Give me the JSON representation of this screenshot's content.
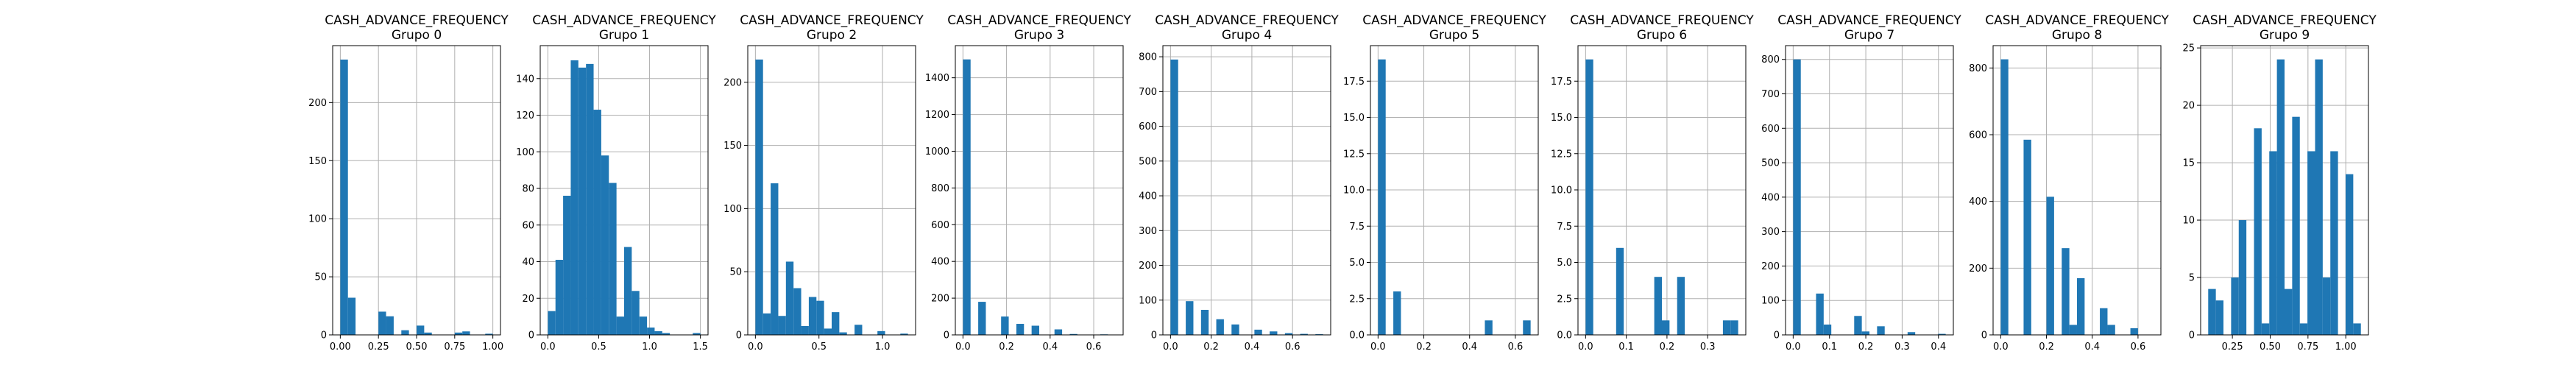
{
  "colors": {
    "bar": "#1f77b4",
    "grid": "#b0b0b0",
    "axis": "#000000"
  },
  "chart_data": [
    {
      "type": "bar",
      "title": [
        "CASH_ADVANCE_FREQUENCY",
        "Grupo 0"
      ],
      "xlabel": "",
      "ylabel": "",
      "grid": true,
      "xlim": [
        -0.05,
        1.05
      ],
      "ylim": [
        0,
        249
      ],
      "xticks": [
        0.0,
        0.25,
        0.5,
        0.75,
        1.0
      ],
      "xtick_labels": [
        "0.00",
        "0.25",
        "0.50",
        "0.75",
        "1.00"
      ],
      "yticks": [
        0,
        50,
        100,
        150,
        200
      ],
      "ytick_labels": [
        "0",
        "50",
        "100",
        "150",
        "200"
      ],
      "bin_edges": [
        0,
        0.05,
        0.1,
        0.15,
        0.2,
        0.25,
        0.3,
        0.35,
        0.4,
        0.45,
        0.5,
        0.55,
        0.6,
        0.65,
        0.7,
        0.75,
        0.8,
        0.85,
        0.9,
        0.95,
        1.0
      ],
      "counts": [
        237,
        32,
        0,
        0,
        0,
        20,
        16,
        0,
        4,
        0,
        8,
        2,
        0,
        0,
        0,
        2,
        3,
        0,
        0,
        1
      ]
    },
    {
      "type": "bar",
      "title": [
        "CASH_ADVANCE_FREQUENCY",
        "Grupo 1"
      ],
      "xlabel": "",
      "ylabel": "",
      "grid": true,
      "xlim": [
        -0.075,
        1.575
      ],
      "ylim": [
        0,
        158
      ],
      "xticks": [
        0.0,
        0.5,
        1.0,
        1.5
      ],
      "xtick_labels": [
        "0.0",
        "0.5",
        "1.0",
        "1.5"
      ],
      "yticks": [
        0,
        20,
        40,
        60,
        80,
        100,
        120,
        140
      ],
      "ytick_labels": [
        "0",
        "20",
        "40",
        "60",
        "80",
        "100",
        "120",
        "140"
      ],
      "bin_edges": [
        0,
        0.075,
        0.15,
        0.225,
        0.3,
        0.375,
        0.45,
        0.525,
        0.6,
        0.675,
        0.75,
        0.825,
        0.9,
        0.975,
        1.05,
        1.125,
        1.2,
        1.275,
        1.35,
        1.425,
        1.5
      ],
      "counts": [
        13,
        41,
        76,
        150,
        146,
        148,
        123,
        98,
        83,
        10,
        48,
        24,
        10,
        4,
        2,
        1,
        0,
        0,
        0,
        1
      ]
    },
    {
      "type": "bar",
      "title": [
        "CASH_ADVANCE_FREQUENCY",
        "Grupo 2"
      ],
      "xlabel": "",
      "ylabel": "",
      "grid": true,
      "xlim": [
        -0.06,
        1.26
      ],
      "ylim": [
        0,
        229
      ],
      "xticks": [
        0.0,
        0.5,
        1.0
      ],
      "xtick_labels": [
        "0.0",
        "0.5",
        "1.0"
      ],
      "yticks": [
        0,
        50,
        100,
        150,
        200
      ],
      "ytick_labels": [
        "0",
        "50",
        "100",
        "150",
        "200"
      ],
      "bin_edges": [
        0,
        0.06,
        0.12,
        0.18,
        0.24,
        0.3,
        0.36,
        0.42,
        0.48,
        0.54,
        0.6,
        0.66,
        0.72,
        0.78,
        0.84,
        0.9,
        0.96,
        1.02,
        1.08,
        1.14,
        1.2
      ],
      "counts": [
        218,
        17,
        120,
        15,
        58,
        37,
        7,
        30,
        27,
        5,
        18,
        2,
        0,
        8,
        0,
        0,
        3,
        0,
        0,
        1
      ]
    },
    {
      "type": "bar",
      "title": [
        "CASH_ADVANCE_FREQUENCY",
        "Grupo 3"
      ],
      "xlabel": "",
      "ylabel": "",
      "grid": true,
      "xlim": [
        -0.035,
        0.735
      ],
      "ylim": [
        0,
        1575
      ],
      "xticks": [
        0.0,
        0.2,
        0.4,
        0.6
      ],
      "xtick_labels": [
        "0.0",
        "0.2",
        "0.4",
        "0.6"
      ],
      "yticks": [
        0,
        200,
        400,
        600,
        800,
        1000,
        1200,
        1400
      ],
      "ytick_labels": [
        "0",
        "200",
        "400",
        "600",
        "800",
        "1000",
        "1200",
        "1400"
      ],
      "bin_edges": [
        0,
        0.035,
        0.07,
        0.105,
        0.14,
        0.175,
        0.21,
        0.245,
        0.28,
        0.315,
        0.35,
        0.385,
        0.42,
        0.455,
        0.49,
        0.525,
        0.56,
        0.595,
        0.63,
        0.665,
        0.7
      ],
      "counts": [
        1500,
        0,
        180,
        0,
        0,
        100,
        0,
        60,
        0,
        50,
        0,
        0,
        30,
        0,
        5,
        0,
        0,
        0,
        3,
        2
      ]
    },
    {
      "type": "bar",
      "title": [
        "CASH_ADVANCE_FREQUENCY",
        "Grupo 4"
      ],
      "xlabel": "",
      "ylabel": "",
      "grid": true,
      "xlim": [
        -0.0375,
        0.7875
      ],
      "ylim": [
        0,
        832
      ],
      "xticks": [
        0.0,
        0.2,
        0.4,
        0.6
      ],
      "xtick_labels": [
        "0.0",
        "0.2",
        "0.4",
        "0.6"
      ],
      "yticks": [
        0,
        100,
        200,
        300,
        400,
        500,
        600,
        700,
        800
      ],
      "ytick_labels": [
        "0",
        "100",
        "200",
        "300",
        "400",
        "500",
        "600",
        "700",
        "800"
      ],
      "bin_edges": [
        0,
        0.0375,
        0.075,
        0.1125,
        0.15,
        0.1875,
        0.225,
        0.2625,
        0.3,
        0.3375,
        0.375,
        0.4125,
        0.45,
        0.4875,
        0.525,
        0.5625,
        0.6,
        0.6375,
        0.675,
        0.7125,
        0.75
      ],
      "counts": [
        792,
        0,
        97,
        0,
        72,
        0,
        45,
        0,
        30,
        0,
        0,
        15,
        0,
        10,
        0,
        5,
        0,
        3,
        0,
        2
      ]
    },
    {
      "type": "bar",
      "title": [
        "CASH_ADVANCE_FREQUENCY",
        "Grupo 5"
      ],
      "xlabel": "",
      "ylabel": "",
      "grid": true,
      "xlim": [
        -0.0333,
        0.7
      ],
      "ylim": [
        0,
        19.95
      ],
      "xticks": [
        0.0,
        0.2,
        0.4,
        0.6
      ],
      "xtick_labels": [
        "0.0",
        "0.2",
        "0.4",
        "0.6"
      ],
      "yticks": [
        0,
        2.5,
        5,
        7.5,
        10,
        12.5,
        15,
        17.5
      ],
      "ytick_labels": [
        "0.0",
        "2.5",
        "5.0",
        "7.5",
        "10.0",
        "12.5",
        "15.0",
        "17.5"
      ],
      "bin_edges": [
        0,
        0.0333,
        0.0667,
        0.1,
        0.1333,
        0.1667,
        0.2,
        0.2333,
        0.2667,
        0.3,
        0.3333,
        0.3667,
        0.4,
        0.4333,
        0.4667,
        0.5,
        0.5333,
        0.5667,
        0.6,
        0.6333,
        0.6667
      ],
      "counts": [
        19,
        0,
        3,
        0,
        0,
        0,
        0,
        0,
        0,
        0,
        0,
        0,
        0,
        0,
        1,
        0,
        0,
        0,
        0,
        1
      ]
    },
    {
      "type": "bar",
      "title": [
        "CASH_ADVANCE_FREQUENCY",
        "Grupo 6"
      ],
      "xlabel": "",
      "ylabel": "",
      "grid": true,
      "xlim": [
        -0.01875,
        0.39375
      ],
      "ylim": [
        0,
        19.95
      ],
      "xticks": [
        0.0,
        0.1,
        0.2,
        0.3
      ],
      "xtick_labels": [
        "0.0",
        "0.1",
        "0.2",
        "0.3"
      ],
      "yticks": [
        0,
        2.5,
        5,
        7.5,
        10,
        12.5,
        15,
        17.5
      ],
      "ytick_labels": [
        "0.0",
        "2.5",
        "5.0",
        "7.5",
        "10.0",
        "12.5",
        "15.0",
        "17.5"
      ],
      "bin_edges": [
        0,
        0.01875,
        0.0375,
        0.05625,
        0.075,
        0.09375,
        0.1125,
        0.13125,
        0.15,
        0.16875,
        0.1875,
        0.20625,
        0.225,
        0.24375,
        0.2625,
        0.28125,
        0.3,
        0.31875,
        0.3375,
        0.35625,
        0.375
      ],
      "counts": [
        19,
        0,
        0,
        0,
        6,
        0,
        0,
        0,
        0,
        4,
        1,
        0,
        4,
        0,
        0,
        0,
        0,
        0,
        1,
        1
      ]
    },
    {
      "type": "bar",
      "title": [
        "CASH_ADVANCE_FREQUENCY",
        "Grupo 7"
      ],
      "xlabel": "",
      "ylabel": "",
      "grid": true,
      "xlim": [
        -0.021,
        0.441
      ],
      "ylim": [
        0,
        840
      ],
      "xticks": [
        0.0,
        0.1,
        0.2,
        0.3,
        0.4
      ],
      "xtick_labels": [
        "0.0",
        "0.1",
        "0.2",
        "0.3",
        "0.4"
      ],
      "yticks": [
        0,
        100,
        200,
        300,
        400,
        500,
        600,
        700,
        800
      ],
      "ytick_labels": [
        "0",
        "100",
        "200",
        "300",
        "400",
        "500",
        "600",
        "700",
        "800"
      ],
      "bin_edges": [
        0,
        0.021,
        0.042,
        0.063,
        0.084,
        0.105,
        0.126,
        0.147,
        0.168,
        0.189,
        0.21,
        0.231,
        0.252,
        0.273,
        0.294,
        0.315,
        0.336,
        0.357,
        0.378,
        0.399,
        0.42
      ],
      "counts": [
        800,
        0,
        0,
        120,
        30,
        0,
        0,
        0,
        55,
        10,
        0,
        25,
        0,
        0,
        0,
        8,
        0,
        0,
        0,
        3
      ]
    },
    {
      "type": "bar",
      "title": [
        "CASH_ADVANCE_FREQUENCY",
        "Grupo 8"
      ],
      "xlabel": "",
      "ylabel": "",
      "grid": true,
      "xlim": [
        -0.0333,
        0.7
      ],
      "ylim": [
        0,
        867
      ],
      "xticks": [
        0.0,
        0.2,
        0.4,
        0.6
      ],
      "xtick_labels": [
        "0.0",
        "0.2",
        "0.4",
        "0.6"
      ],
      "yticks": [
        0,
        200,
        400,
        600,
        800
      ],
      "ytick_labels": [
        "0",
        "200",
        "400",
        "600",
        "800"
      ],
      "bin_edges": [
        0,
        0.0333,
        0.0667,
        0.1,
        0.1333,
        0.1667,
        0.2,
        0.2333,
        0.2667,
        0.3,
        0.3333,
        0.3667,
        0.4,
        0.4333,
        0.4667,
        0.5,
        0.5333,
        0.5667,
        0.6,
        0.6333,
        0.6667
      ],
      "counts": [
        826,
        0,
        0,
        585,
        0,
        0,
        414,
        0,
        260,
        30,
        170,
        0,
        0,
        80,
        30,
        0,
        0,
        20,
        0,
        0
      ]
    },
    {
      "type": "bar",
      "title": [
        "CASH_ADVANCE_FREQUENCY",
        "Grupo 9"
      ],
      "xlabel": "",
      "ylabel": "",
      "grid": true,
      "xlim": [
        0.04,
        1.15
      ],
      "ylim": [
        0,
        25.2
      ],
      "xticks": [
        0.25,
        0.5,
        0.75,
        1.0
      ],
      "xtick_labels": [
        "0.25",
        "0.50",
        "0.75",
        "1.00"
      ],
      "yticks": [
        0,
        5,
        10,
        15,
        20,
        25
      ],
      "ytick_labels": [
        "0",
        "5",
        "10",
        "15",
        "20",
        "25"
      ],
      "bin_edges": [
        0.09,
        0.1405,
        0.191,
        0.2415,
        0.292,
        0.3425,
        0.393,
        0.4435,
        0.494,
        0.5445,
        0.595,
        0.6455,
        0.696,
        0.7465,
        0.797,
        0.8475,
        0.898,
        0.9485,
        0.999,
        1.0495,
        1.1
      ],
      "counts": [
        4,
        3,
        0,
        5,
        10,
        0,
        18,
        1,
        16,
        24,
        4,
        19,
        1,
        16,
        24,
        5,
        16,
        0,
        14,
        1
      ]
    }
  ]
}
